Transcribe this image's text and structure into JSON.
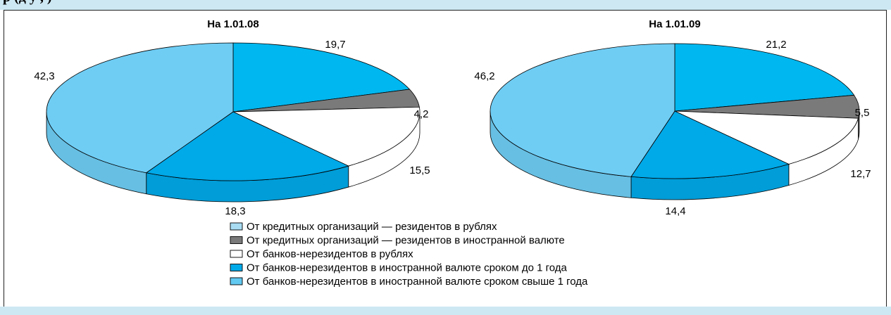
{
  "header": {
    "title_fragment": "р (д у , )"
  },
  "chart_data": [
    {
      "type": "pie",
      "title": "На 1.01.08",
      "slices": [
        {
          "category_index": 0,
          "value": 42.3
        },
        {
          "category_index": 1,
          "value": 4.2
        },
        {
          "category_index": 2,
          "value": 15.5
        },
        {
          "category_index": 3,
          "value": 18.3
        },
        {
          "category_index": 4,
          "value": 19.7
        }
      ],
      "value_labels": [
        "42,3",
        "4,2",
        "15,5",
        "18,3",
        "19,7"
      ]
    },
    {
      "type": "pie",
      "title": "На 1.01.09",
      "slices": [
        {
          "category_index": 0,
          "value": 46.2
        },
        {
          "category_index": 1,
          "value": 5.5
        },
        {
          "category_index": 2,
          "value": 12.7
        },
        {
          "category_index": 3,
          "value": 14.4
        },
        {
          "category_index": 4,
          "value": 21.2
        }
      ],
      "value_labels": [
        "46,2",
        "5,5",
        "12,7",
        "14,4",
        "21,2"
      ]
    }
  ],
  "legend": {
    "placement": "bottom-center",
    "items": [
      {
        "label": "От кредитных организаций — резидентов в рублях",
        "color": "#a8dcf3"
      },
      {
        "label": "От кредитных организаций — резидентов в иностранной валюте",
        "color": "#7a7a7a"
      },
      {
        "label": "От банков-нерезидентов в рублях",
        "color": "#ffffff"
      },
      {
        "label": "От банков-нерезидентов в иностранной валюте сроком до 1 года",
        "color": "#00a9e8"
      },
      {
        "label": "От банков-нерезидентов в иностранной валюте сроком свыше 1 года",
        "color": "#62c9f1"
      }
    ]
  },
  "slice_colors": [
    "#6fcdf4",
    "#7a7a7a",
    "#ffffff",
    "#00a9e8",
    "#00b7ef"
  ]
}
